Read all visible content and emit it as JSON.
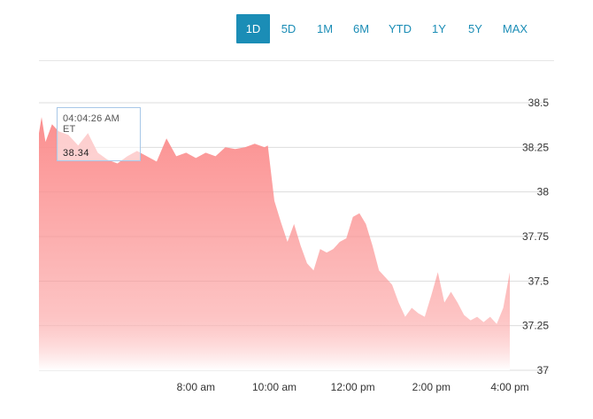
{
  "range_tabs": [
    {
      "label": "1D",
      "active": true
    },
    {
      "label": "5D",
      "active": false
    },
    {
      "label": "1M",
      "active": false
    },
    {
      "label": "6M",
      "active": false
    },
    {
      "label": "YTD",
      "active": false
    },
    {
      "label": "1Y",
      "active": false
    },
    {
      "label": "5Y",
      "active": false
    },
    {
      "label": "MAX",
      "active": false
    }
  ],
  "tooltip": {
    "time": "04:04:26 AM ET",
    "value": "38.34"
  },
  "colors": {
    "accent": "#1b8db6",
    "area_top": "#fb8f8f",
    "area_bottom": "#ffffff",
    "gridline": "#dddddd"
  },
  "chart_data": {
    "type": "area",
    "title": "",
    "xlabel": "",
    "ylabel": "",
    "ylim": [
      37,
      38.5
    ],
    "y_ticks": [
      "38.5",
      "38.25",
      "38",
      "37.75",
      "37.5",
      "37.25",
      "37"
    ],
    "x_ticks": [
      "8:00 am",
      "10:00 am",
      "12:00 pm",
      "2:00 pm",
      "4:00 pm"
    ],
    "grid": true,
    "series": [
      {
        "values_time": [
          "4:00",
          "4:04",
          "4:10",
          "4:20",
          "4:30",
          "4:45",
          "5:00",
          "5:15",
          "5:30",
          "5:45",
          "6:00",
          "6:15",
          "6:30",
          "6:45",
          "7:00",
          "7:15",
          "7:30",
          "7:45",
          "8:00",
          "8:15",
          "8:30",
          "8:45",
          "9:00",
          "9:15",
          "9:30",
          "9:45",
          "9:50",
          "10:00",
          "10:10",
          "10:20",
          "10:30",
          "10:40",
          "10:50",
          "11:00",
          "11:10",
          "11:20",
          "11:30",
          "11:40",
          "11:50",
          "12:00",
          "12:10",
          "12:20",
          "12:30",
          "12:40",
          "12:50",
          "13:00",
          "13:10",
          "13:20",
          "13:30",
          "13:40",
          "13:50",
          "14:00",
          "14:10",
          "14:20",
          "14:30",
          "14:40",
          "14:50",
          "15:00",
          "15:10",
          "15:20",
          "15:30",
          "15:40",
          "15:50",
          "16:00"
        ],
        "values": [
          38.33,
          38.42,
          38.28,
          38.38,
          38.34,
          38.32,
          38.26,
          38.33,
          38.22,
          38.18,
          38.16,
          38.2,
          38.23,
          38.2,
          38.17,
          38.3,
          38.2,
          38.22,
          38.19,
          38.22,
          38.2,
          38.25,
          38.24,
          38.25,
          38.27,
          38.25,
          38.26,
          37.95,
          37.83,
          37.72,
          37.82,
          37.7,
          37.6,
          37.56,
          37.68,
          37.66,
          37.68,
          37.72,
          37.74,
          37.86,
          37.88,
          37.82,
          37.7,
          37.56,
          37.52,
          37.48,
          37.38,
          37.3,
          37.35,
          37.32,
          37.3,
          37.42,
          37.55,
          37.38,
          37.44,
          37.38,
          37.31,
          37.28,
          37.3,
          37.27,
          37.3,
          37.26,
          37.35,
          37.55
        ]
      }
    ]
  }
}
